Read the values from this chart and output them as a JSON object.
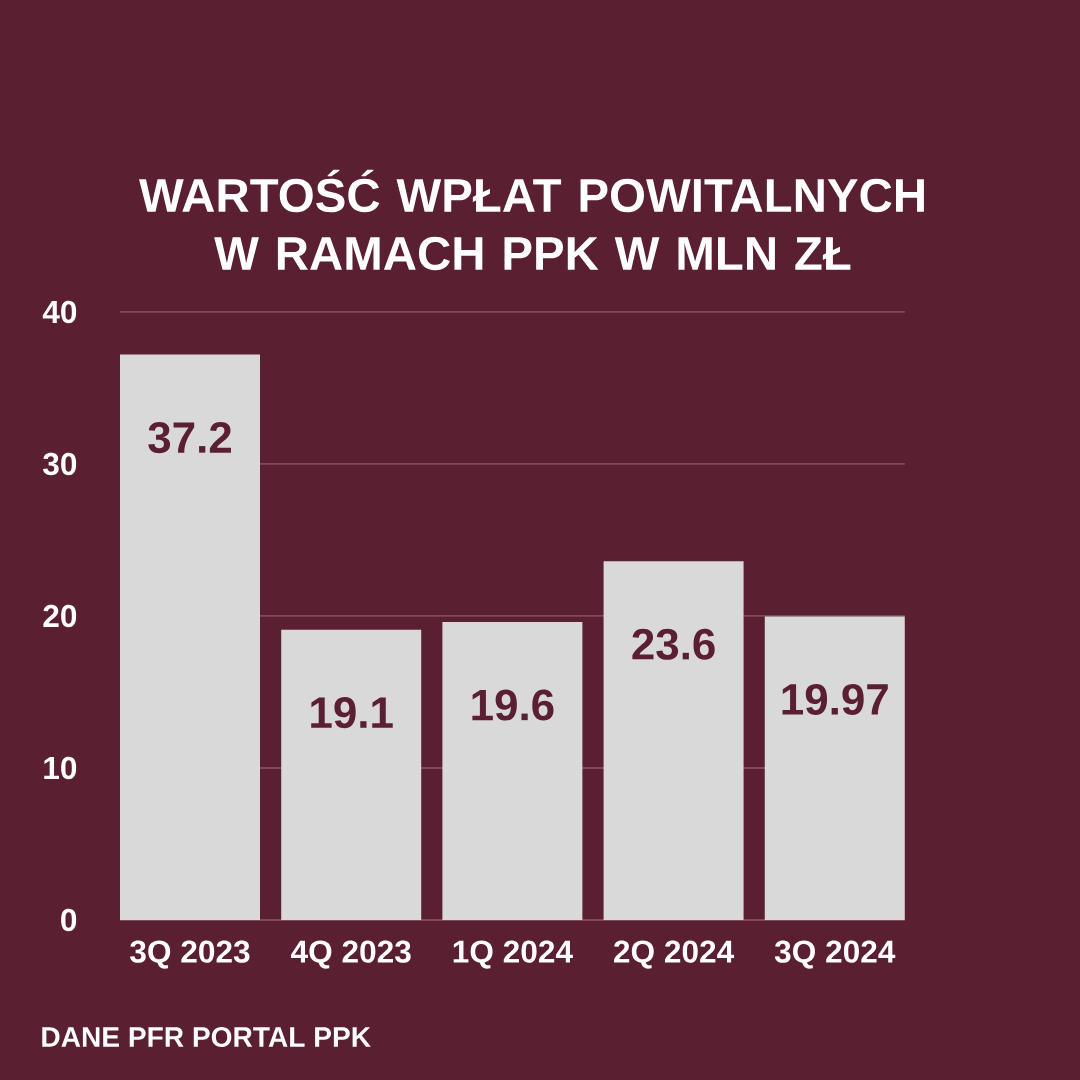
{
  "chart_data": {
    "type": "bar",
    "title": "WARTOŚĆ WPŁAT POWITALNYCH W RAMACH PPK W MLN ZŁ",
    "categories": [
      "3Q 2023",
      "4Q 2023",
      "1Q 2024",
      "2Q 2024",
      "3Q 2024"
    ],
    "values": [
      37.2,
      19.1,
      19.6,
      23.6,
      19.97
    ],
    "color": "#d9d9d9",
    "ylim": [
      0,
      40
    ],
    "yticks": [
      0,
      10,
      20,
      30,
      40
    ],
    "grid": "y",
    "data_labels": true,
    "annotations": [
      "DANE PFR PORTAL PPK"
    ]
  }
}
